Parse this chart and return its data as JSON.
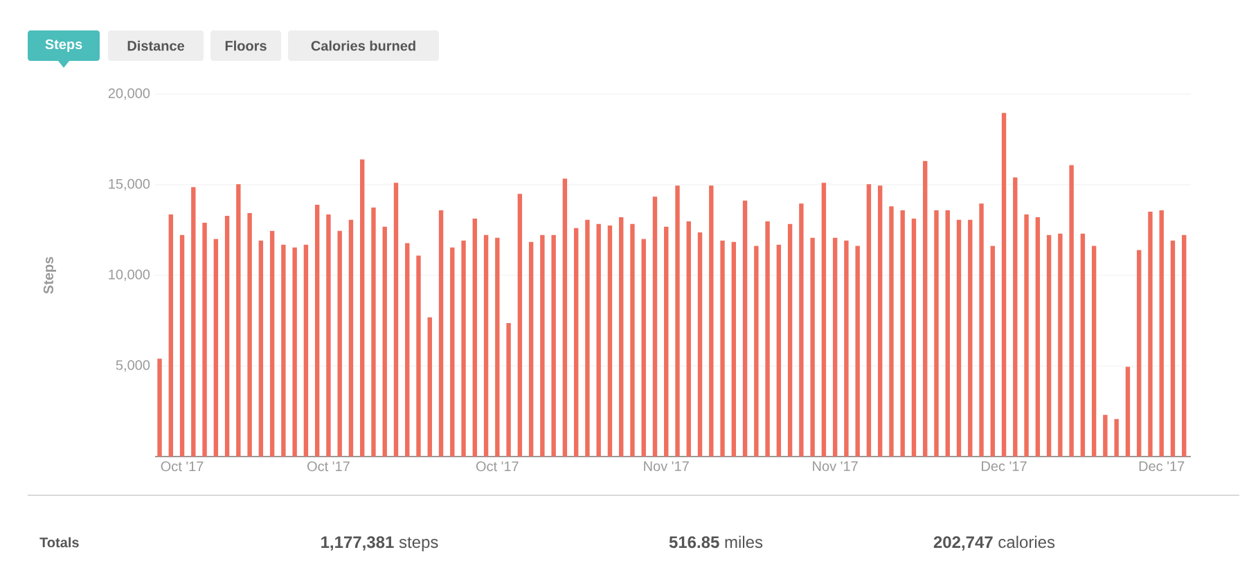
{
  "chart_data": {
    "type": "bar",
    "ylabel": "Steps",
    "color": "#ef6f5e",
    "grid": "y",
    "ylim": [
      0,
      20000
    ],
    "yticks": [
      {
        "value": 5000,
        "label": "5,000"
      },
      {
        "value": 10000,
        "label": "10,000"
      },
      {
        "value": 15000,
        "label": "15,000"
      },
      {
        "value": 20000,
        "label": "20,000"
      }
    ],
    "categories": [
      null,
      null,
      "Oct '17",
      null,
      null,
      null,
      null,
      null,
      null,
      null,
      null,
      null,
      null,
      null,
      null,
      "Oct '17",
      null,
      null,
      null,
      null,
      null,
      null,
      null,
      null,
      null,
      null,
      null,
      null,
      null,
      null,
      "Oct '17",
      null,
      null,
      null,
      null,
      null,
      null,
      null,
      null,
      null,
      null,
      null,
      null,
      null,
      null,
      "Nov '17",
      null,
      null,
      null,
      null,
      null,
      null,
      null,
      null,
      null,
      null,
      null,
      null,
      null,
      null,
      "Nov '17",
      null,
      null,
      null,
      null,
      null,
      null,
      null,
      null,
      null,
      null,
      null,
      null,
      null,
      null,
      "Dec '17",
      null,
      null,
      null,
      null,
      null,
      null,
      null,
      null,
      null,
      null,
      null,
      null,
      null,
      "Dec '17",
      null,
      null
    ],
    "values": [
      5400,
      13360,
      12220,
      14870,
      12900,
      12000,
      13280,
      15030,
      13430,
      11920,
      12450,
      11690,
      11540,
      11690,
      13890,
      13360,
      12450,
      13060,
      16390,
      13740,
      12680,
      15100,
      11770,
      11090,
      7680,
      13590,
      11540,
      11920,
      13130,
      12220,
      12070,
      7370,
      14490,
      11840,
      12220,
      12220,
      15330,
      12600,
      13060,
      12830,
      12750,
      13210,
      12830,
      12000,
      14340,
      12680,
      14950,
      12980,
      12370,
      14950,
      11920,
      11840,
      14120,
      11620,
      12980,
      11690,
      12830,
      13960,
      12070,
      15100,
      12070,
      11920,
      11620,
      15030,
      14950,
      13810,
      13590,
      13130,
      16310,
      13590,
      13590,
      13060,
      13060,
      13960,
      11620,
      18960,
      15400,
      13360,
      13210,
      12220,
      12300,
      16080,
      12300,
      11620,
      2300,
      2070,
      4950,
      11390,
      13510,
      13590,
      11920,
      12220
    ],
    "annotations": [
      "Steps",
      "Distance",
      "Floors",
      "Calories burned",
      "Totals",
      "**1,177,381** steps",
      "**516.85** miles",
      "**202,747** calories"
    ]
  }
}
